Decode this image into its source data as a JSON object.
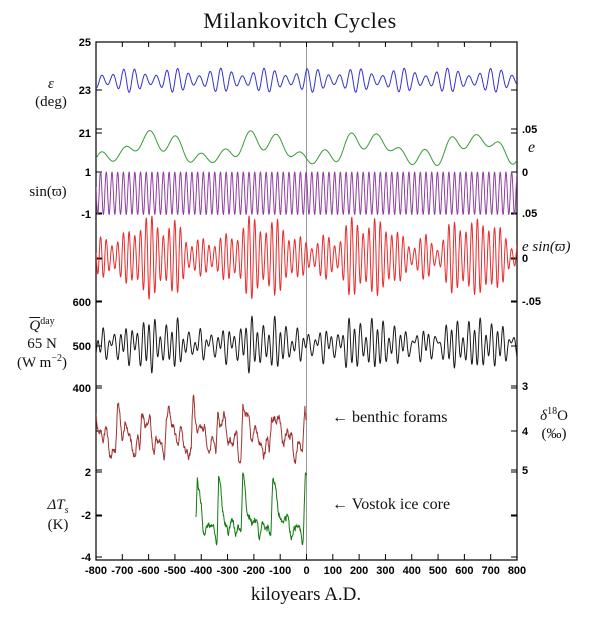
{
  "labels": {
    "title": "Milankovitch Cycles",
    "xlabel": "kiloyears A.D.",
    "eps_symbol": "ε",
    "eps_units": "(deg)",
    "sin_pi": "sin(ϖ)",
    "e_symbol": "e",
    "esin": "e sin(ϖ)",
    "q_base": "Q",
    "q_sup": "day",
    "q_line2": "65 N",
    "q_line3_pre": "(W m",
    "q_line3_sup": "−2",
    "q_line3_post": ")",
    "d18o_pre": "δ",
    "d18o_sup": "18",
    "d18o_post": "O",
    "d18o_units": "(‰)",
    "dts_pre": "ΔT",
    "dts_sub": "s",
    "dts_units": "(K)",
    "benthic_annotation": "← benthic forams",
    "vostok_annotation": "← Vostok ice core"
  },
  "chart_data": {
    "type": "line",
    "title": "Milankovitch Cycles",
    "xlabel": "kiloyears A.D.",
    "x_range": [
      -800,
      800
    ],
    "x_ticks": [
      "-800",
      "-700",
      "-600",
      "-500",
      "-400",
      "-300",
      "-200",
      "-100",
      "0",
      "100",
      "200",
      "300",
      "400",
      "500",
      "600",
      "700",
      "800"
    ],
    "present_line_x": 0,
    "present_line_color": "#9a9a9a",
    "frame_color": "#000000",
    "left_ticks": [
      {
        "label": "25",
        "y": 42
      },
      {
        "label": "23",
        "y": 90
      },
      {
        "label": "21",
        "y": 133
      },
      {
        "label": "1",
        "y": 172
      },
      {
        "label": "-1",
        "y": 214
      },
      {
        "label": "",
        "y": 259
      },
      {
        "label": "600",
        "y": 302
      },
      {
        "label": "500",
        "y": 346
      },
      {
        "label": "400",
        "y": 388
      },
      {
        "label": "2",
        "y": 472
      },
      {
        "label": "-2",
        "y": 515
      },
      {
        "label": "-4",
        "y": 557
      }
    ],
    "right_ticks": [
      {
        "label": ".05",
        "y": 129
      },
      {
        "label": "0",
        "y": 172
      },
      {
        "label": ".05",
        "y": 213
      },
      {
        "label": "0",
        "y": 258
      },
      {
        "label": "-.05",
        "y": 301
      },
      {
        "label": "3",
        "y": 386
      },
      {
        "label": "4",
        "y": 431
      },
      {
        "label": "5",
        "y": 470
      },
      {
        "label": "",
        "y": 516
      }
    ],
    "panels": [
      {
        "name": "obliquity",
        "ylabel": "ε (deg)",
        "color": "#3333cc",
        "yticks": [
          25,
          23,
          21
        ],
        "dominant_period_kyr": 41,
        "approx_range": [
          22.3,
          24.5
        ]
      },
      {
        "name": "eccentricity",
        "ylabel": "e",
        "color": "#3a9a3a",
        "yticks": [
          0.05,
          0
        ],
        "dominant_periods_kyr": [
          95,
          124,
          405
        ],
        "approx_range": [
          0.004,
          0.05
        ]
      },
      {
        "name": "precession-angle",
        "ylabel": "sin(ϖ)",
        "color": "#9040a0",
        "yticks": [
          1,
          -1
        ],
        "dominant_period_kyr": 21.7
      },
      {
        "name": "precession-index",
        "ylabel": "e sin(ϖ)",
        "color": "#e82c2c",
        "yticks": [
          0.05,
          0,
          -0.05
        ]
      },
      {
        "name": "insolation",
        "ylabel": "Qday 65 N (W m−2)",
        "color": "#1a1a1a",
        "yticks": [
          600,
          500,
          400
        ],
        "approx_range": [
          430,
          565
        ]
      },
      {
        "name": "benthic-forams",
        "ylabel": "δ18O (‰)",
        "color": "#a03232",
        "yticks": [
          3,
          4,
          5
        ],
        "axis_inverted": true,
        "x_extent": [
          -800,
          0
        ],
        "annotation": "← benthic forams"
      },
      {
        "name": "vostok",
        "ylabel": "ΔTs (K)",
        "color": "#107a10",
        "yticks": [
          2,
          -2,
          -4
        ],
        "x_extent": [
          -420,
          0
        ],
        "annotation": "← Vostok ice core"
      }
    ],
    "scales": {
      "x": [
        [
          -800,
          96
        ],
        [
          800,
          517
        ]
      ],
      "obliquity": [
        [
          25,
          42
        ],
        [
          21,
          133
        ]
      ],
      "eccentricity": [
        [
          0.05,
          129
        ],
        [
          0,
          172
        ]
      ],
      "precession_angle": [
        [
          1,
          172
        ],
        [
          -1,
          214.5
        ]
      ],
      "precession_index": [
        [
          0.05,
          213
        ],
        [
          -0.05,
          301
        ]
      ],
      "insolation": [
        [
          600,
          302
        ],
        [
          400,
          388
        ]
      ],
      "benthic": [
        [
          3,
          386
        ],
        [
          5,
          470
        ]
      ],
      "vostok": [
        [
          2,
          472
        ],
        [
          -2,
          515
        ]
      ]
    },
    "synthesis": {
      "step_kyr": 1,
      "eccentricity": {
        "base": 0.0265,
        "terms": [
          [
            -0.0115,
            405,
            30
          ],
          [
            -0.0085,
            95,
            25
          ],
          [
            0.004,
            131,
            170
          ]
        ],
        "min": 0.003
      },
      "obliquity": {
        "base": 23.32,
        "carrier_period": 41,
        "carrier_phase": 1.2,
        "env_base": 0.36,
        "env_amp": 0.17,
        "env_period": 173,
        "env_phase": 0.9
      },
      "precession": {
        "period": 21.7,
        "phase": 2.0
      },
      "insolation": {
        "base": 501,
        "ecc_gain": 1150,
        "obl_amp": 16,
        "obl_phase": 1.2
      },
      "benthic": {
        "seed": 11,
        "terminations": [
          -812,
          -718,
          -627,
          -533,
          -430,
          -337,
          -242,
          -133,
          -6,
          90
        ],
        "min": 3.55,
        "max": 4.65,
        "drop_frac": 0.08,
        "rise_pow": 0.75,
        "wiggle": [
          [
            0.2,
            41,
            2.2
          ],
          [
            0.13,
            23.5,
            0.5
          ]
        ],
        "noise": 0.26,
        "clamp": [
          3.22,
          5.0
        ],
        "x_extent": [
          -800,
          0
        ]
      },
      "vostok": {
        "seed": 77,
        "terminations": [
          -515,
          -415,
          -334,
          -242,
          -128,
          -4,
          96
        ],
        "peak": 1.7,
        "trough": -3.6,
        "rise_frac": 0.07,
        "decay_frac": 0.3,
        "wiggle": [
          [
            0.45,
            41,
            1.0
          ],
          [
            0.35,
            23.5,
            2.0
          ]
        ],
        "noise": 1.0,
        "x_extent": [
          -420,
          0
        ],
        "y_clamp": [
          473,
          552
        ]
      }
    }
  }
}
